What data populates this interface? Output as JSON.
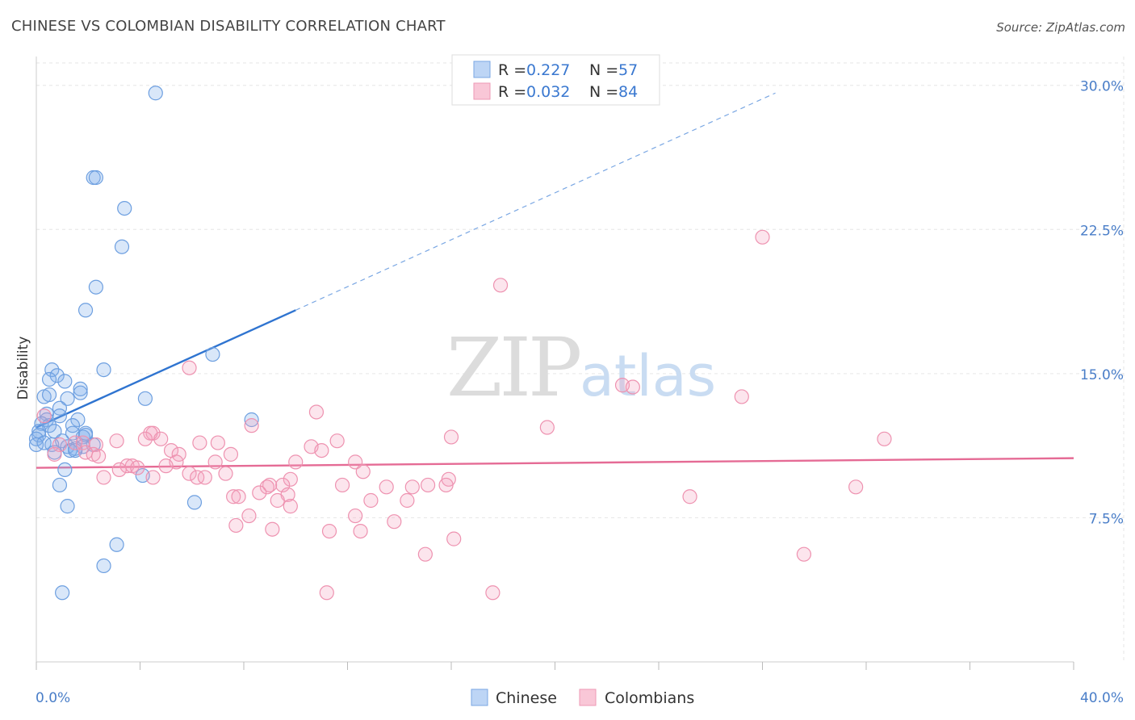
{
  "title": "CHINESE VS COLOMBIAN DISABILITY CORRELATION CHART",
  "source": "Source: ZipAtlas.com",
  "watermark": {
    "zip": "ZIP",
    "atlas": "atlas"
  },
  "legend_top": [
    {
      "r_label": "R =",
      "r_value": "0.227",
      "n_label": "N =",
      "n_value": "57",
      "color": "#6aa0e0"
    },
    {
      "r_label": "R =",
      "r_value": "0.032",
      "n_label": "N =",
      "n_value": "84",
      "color": "#ee88aa"
    }
  ],
  "chart_data": {
    "type": "scatter",
    "title": "CHINESE VS COLOMBIAN DISABILITY CORRELATION CHART",
    "xlabel": "",
    "ylabel": "Disability",
    "xlim": [
      0,
      40
    ],
    "ylim": [
      0,
      31.5
    ],
    "x_tick_labels": [
      "0.0%",
      "40.0%"
    ],
    "y_ticks": [
      7.5,
      15.0,
      22.5,
      30.0
    ],
    "y_tick_labels": [
      "7.5%",
      "15.0%",
      "22.5%",
      "30.0%"
    ],
    "grid": true,
    "legend_placement": "bottom-center",
    "series": [
      {
        "name": "Chinese",
        "color": "#6aa0e0",
        "trend": {
          "x0": 0,
          "y0": 12.2,
          "x1": 10,
          "y1": 18.3,
          "dashed_to_x": 28.5,
          "dashed_to_y": 29.6
        },
        "points": [
          [
            4.6,
            29.6
          ],
          [
            2.2,
            25.2
          ],
          [
            2.3,
            25.2
          ],
          [
            3.4,
            23.6
          ],
          [
            3.3,
            21.6
          ],
          [
            2.3,
            19.5
          ],
          [
            1.9,
            18.3
          ],
          [
            6.8,
            16.0
          ],
          [
            2.6,
            15.2
          ],
          [
            0.6,
            15.2
          ],
          [
            0.8,
            14.9
          ],
          [
            0.5,
            14.7
          ],
          [
            1.1,
            14.6
          ],
          [
            1.7,
            14.2
          ],
          [
            1.7,
            14.0
          ],
          [
            0.3,
            13.8
          ],
          [
            0.5,
            13.9
          ],
          [
            1.2,
            13.7
          ],
          [
            4.2,
            13.7
          ],
          [
            0.9,
            13.2
          ],
          [
            0.4,
            12.9
          ],
          [
            0.9,
            12.8
          ],
          [
            0.4,
            12.6
          ],
          [
            1.6,
            12.6
          ],
          [
            0.2,
            12.4
          ],
          [
            0.5,
            12.3
          ],
          [
            1.4,
            12.3
          ],
          [
            8.3,
            12.6
          ],
          [
            0.1,
            12.0
          ],
          [
            0.7,
            12.0
          ],
          [
            1.4,
            11.9
          ],
          [
            1.9,
            11.9
          ],
          [
            0.1,
            11.8
          ],
          [
            1.8,
            11.7
          ],
          [
            1.9,
            11.8
          ],
          [
            0.0,
            11.6
          ],
          [
            1.0,
            11.5
          ],
          [
            0.3,
            11.4
          ],
          [
            0.6,
            11.3
          ],
          [
            2.2,
            11.3
          ],
          [
            0.0,
            11.3
          ],
          [
            1.2,
            11.2
          ],
          [
            1.5,
            11.1
          ],
          [
            1.8,
            11.2
          ],
          [
            1.3,
            11.0
          ],
          [
            0.7,
            10.9
          ],
          [
            1.5,
            11.0
          ],
          [
            1.1,
            10.0
          ],
          [
            4.1,
            9.7
          ],
          [
            0.9,
            9.2
          ],
          [
            6.1,
            8.3
          ],
          [
            1.2,
            8.1
          ],
          [
            3.1,
            6.1
          ],
          [
            2.6,
            5.0
          ],
          [
            1.0,
            3.6
          ]
        ]
      },
      {
        "name": "Colombians",
        "color": "#ee88aa",
        "trend": {
          "x0": 0,
          "y0": 10.1,
          "x1": 40,
          "y1": 10.6
        },
        "points": [
          [
            28.0,
            22.1
          ],
          [
            17.9,
            19.6
          ],
          [
            5.9,
            15.3
          ],
          [
            22.6,
            14.4
          ],
          [
            23.0,
            14.3
          ],
          [
            27.2,
            13.8
          ],
          [
            10.8,
            13.0
          ],
          [
            0.3,
            12.8
          ],
          [
            8.3,
            12.3
          ],
          [
            19.7,
            12.2
          ],
          [
            4.5,
            11.9
          ],
          [
            4.4,
            11.9
          ],
          [
            16.0,
            11.7
          ],
          [
            32.7,
            11.6
          ],
          [
            4.8,
            11.6
          ],
          [
            3.1,
            11.5
          ],
          [
            4.2,
            11.6
          ],
          [
            6.3,
            11.4
          ],
          [
            7.0,
            11.4
          ],
          [
            11.6,
            11.5
          ],
          [
            0.9,
            11.3
          ],
          [
            1.5,
            11.4
          ],
          [
            1.8,
            11.4
          ],
          [
            2.3,
            11.3
          ],
          [
            10.6,
            11.2
          ],
          [
            11.0,
            11.0
          ],
          [
            5.2,
            11.0
          ],
          [
            7.5,
            10.8
          ],
          [
            5.5,
            10.8
          ],
          [
            1.9,
            10.9
          ],
          [
            2.2,
            10.8
          ],
          [
            2.4,
            10.7
          ],
          [
            0.7,
            10.8
          ],
          [
            6.9,
            10.4
          ],
          [
            10.0,
            10.4
          ],
          [
            12.3,
            10.4
          ],
          [
            5.4,
            10.4
          ],
          [
            3.5,
            10.2
          ],
          [
            3.7,
            10.2
          ],
          [
            3.9,
            10.1
          ],
          [
            5.0,
            10.2
          ],
          [
            3.2,
            10.0
          ],
          [
            5.9,
            9.8
          ],
          [
            7.3,
            9.8
          ],
          [
            12.6,
            9.9
          ],
          [
            2.6,
            9.6
          ],
          [
            6.2,
            9.6
          ],
          [
            6.5,
            9.6
          ],
          [
            4.5,
            9.6
          ],
          [
            15.9,
            9.5
          ],
          [
            9.8,
            9.5
          ],
          [
            13.5,
            9.1
          ],
          [
            15.8,
            9.2
          ],
          [
            15.1,
            9.2
          ],
          [
            11.8,
            9.2
          ],
          [
            9.0,
            9.2
          ],
          [
            9.5,
            9.2
          ],
          [
            8.9,
            9.1
          ],
          [
            14.5,
            9.1
          ],
          [
            31.6,
            9.1
          ],
          [
            9.7,
            8.7
          ],
          [
            8.6,
            8.8
          ],
          [
            7.6,
            8.6
          ],
          [
            7.8,
            8.6
          ],
          [
            12.9,
            8.4
          ],
          [
            9.3,
            8.4
          ],
          [
            14.3,
            8.4
          ],
          [
            25.2,
            8.6
          ],
          [
            9.8,
            8.1
          ],
          [
            12.3,
            7.6
          ],
          [
            8.2,
            7.6
          ],
          [
            13.8,
            7.3
          ],
          [
            7.7,
            7.1
          ],
          [
            9.1,
            6.9
          ],
          [
            11.3,
            6.8
          ],
          [
            12.5,
            6.8
          ],
          [
            16.1,
            6.4
          ],
          [
            15.0,
            5.6
          ],
          [
            29.6,
            5.6
          ],
          [
            11.2,
            3.6
          ],
          [
            17.6,
            3.6
          ]
        ]
      }
    ]
  }
}
